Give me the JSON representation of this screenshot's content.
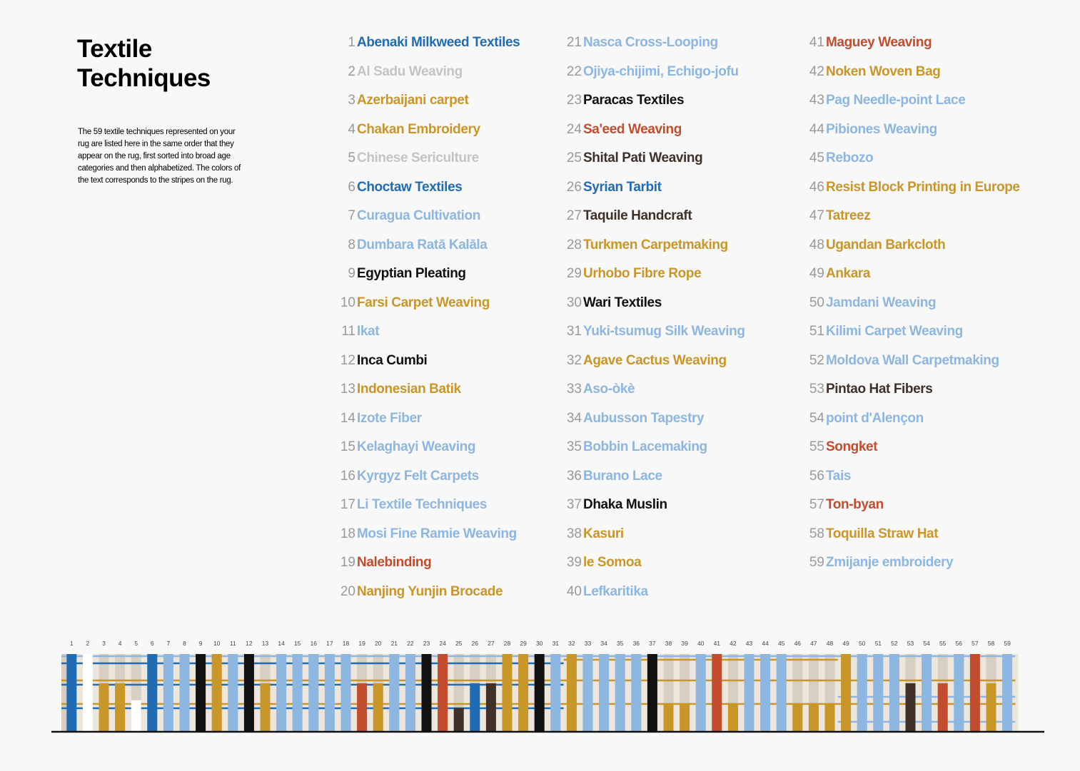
{
  "title_line1": "Textile",
  "title_line2": "Techniques",
  "description": "The 59 textile techniques represented on your rug are listed here in the same order that they appear on the rug, first sorted into broad age categories and then alphabetized. The colors of the text corresponds to the stripes on the rug.",
  "colors": {
    "dark_blue": "#1f6cb4",
    "light_blue": "#8db6e0",
    "gold": "#c9962a",
    "red": "#c24d2e",
    "black": "#111111",
    "brown": "#3f3129",
    "gray": "#c4c4c4",
    "white": "#ffffff",
    "beige": "#d8cfc2",
    "axis": "#111111"
  },
  "techniques": [
    {
      "n": "1",
      "name": "Abenaki Milkweed Textiles",
      "color": "dark_blue"
    },
    {
      "n": "2",
      "name": "Al Sadu Weaving",
      "color": "gray"
    },
    {
      "n": "3",
      "name": "Azerbaijani carpet",
      "color": "gold"
    },
    {
      "n": "4",
      "name": "Chakan Embroidery",
      "color": "gold"
    },
    {
      "n": "5",
      "name": "Chinese Sericulture",
      "color": "gray"
    },
    {
      "n": "6",
      "name": "Choctaw Textiles",
      "color": "dark_blue"
    },
    {
      "n": "7",
      "name": "Curagua Cultivation",
      "color": "light_blue"
    },
    {
      "n": "8",
      "name": "Dumbara Ratā Kalāla",
      "color": "light_blue"
    },
    {
      "n": "9",
      "name": "Egyptian Pleating",
      "color": "black"
    },
    {
      "n": "10",
      "name": "Farsi Carpet Weaving",
      "color": "gold"
    },
    {
      "n": "11",
      "name": "Ikat",
      "color": "light_blue"
    },
    {
      "n": "12",
      "name": "Inca Cumbi",
      "color": "black"
    },
    {
      "n": "13",
      "name": "Indonesian Batik",
      "color": "gold"
    },
    {
      "n": "14",
      "name": "Izote Fiber",
      "color": "light_blue"
    },
    {
      "n": "15",
      "name": "Kelaghayi Weaving",
      "color": "light_blue"
    },
    {
      "n": "16",
      "name": "Kyrgyz Felt Carpets",
      "color": "light_blue"
    },
    {
      "n": "17",
      "name": "Li Textile Techniques",
      "color": "light_blue"
    },
    {
      "n": "18",
      "name": "Mosi Fine Ramie Weaving",
      "color": "light_blue"
    },
    {
      "n": "19",
      "name": "Nalebinding",
      "color": "red"
    },
    {
      "n": "20",
      "name": "Nanjing Yunjin Brocade",
      "color": "gold"
    },
    {
      "n": "21",
      "name": "Nasca Cross-Looping",
      "color": "light_blue"
    },
    {
      "n": "22",
      "name": "Ojiya-chijimi, Echigo-jofu",
      "color": "light_blue"
    },
    {
      "n": "23",
      "name": "Paracas Textiles",
      "color": "black"
    },
    {
      "n": "24",
      "name": "Sa'eed Weaving",
      "color": "red"
    },
    {
      "n": "25",
      "name": "Shital Pati Weaving",
      "color": "brown"
    },
    {
      "n": "26",
      "name": "Syrian Tarbit",
      "color": "dark_blue"
    },
    {
      "n": "27",
      "name": "Taquile Handcraft",
      "color": "brown"
    },
    {
      "n": "28",
      "name": "Turkmen Carpetmaking",
      "color": "gold"
    },
    {
      "n": "29",
      "name": "Urhobo Fibre Rope",
      "color": "gold"
    },
    {
      "n": "30",
      "name": "Wari Textiles",
      "color": "black"
    },
    {
      "n": "31",
      "name": "Yuki-tsumug Silk Weaving",
      "color": "light_blue"
    },
    {
      "n": "32",
      "name": "Agave Cactus Weaving",
      "color": "gold"
    },
    {
      "n": "33",
      "name": "Aso-òkè",
      "color": "light_blue"
    },
    {
      "n": "34",
      "name": "Aubusson Tapestry",
      "color": "light_blue"
    },
    {
      "n": "35",
      "name": "Bobbin Lacemaking",
      "color": "light_blue"
    },
    {
      "n": "36",
      "name": "Burano Lace",
      "color": "light_blue"
    },
    {
      "n": "37",
      "name": "Dhaka Muslin",
      "color": "black"
    },
    {
      "n": "38",
      "name": "Kasuri",
      "color": "gold"
    },
    {
      "n": "39",
      "name": "le Somoa",
      "color": "gold"
    },
    {
      "n": "40",
      "name": "Lefkaritika",
      "color": "light_blue"
    },
    {
      "n": "41",
      "name": "Maguey Weaving",
      "color": "red"
    },
    {
      "n": "42",
      "name": "Noken Woven Bag",
      "color": "gold"
    },
    {
      "n": "43",
      "name": "Pag Needle-point Lace",
      "color": "light_blue"
    },
    {
      "n": "44",
      "name": "Pibiones Weaving",
      "color": "light_blue"
    },
    {
      "n": "45",
      "name": "Rebozo",
      "color": "light_blue"
    },
    {
      "n": "46",
      "name": "Resist Block Printing in Europe",
      "color": "gold"
    },
    {
      "n": "47",
      "name": "Tatreez",
      "color": "gold"
    },
    {
      "n": "48",
      "name": "Ugandan Barkcloth",
      "color": "gold"
    },
    {
      "n": "49",
      "name": "Ankara",
      "color": "gold"
    },
    {
      "n": "50",
      "name": "Jamdani Weaving",
      "color": "light_blue"
    },
    {
      "n": "51",
      "name": "Kilimi Carpet Weaving",
      "color": "light_blue"
    },
    {
      "n": "52",
      "name": "Moldova Wall Carpetmaking",
      "color": "light_blue"
    },
    {
      "n": "53",
      "name": "Pintao Hat Fibers",
      "color": "brown"
    },
    {
      "n": "54",
      "name": "point d'Alençon",
      "color": "light_blue"
    },
    {
      "n": "55",
      "name": "Songket",
      "color": "red"
    },
    {
      "n": "56",
      "name": "Tais",
      "color": "light_blue"
    },
    {
      "n": "57",
      "name": "Ton-byan",
      "color": "red"
    },
    {
      "n": "58",
      "name": "Toquilla Straw Hat",
      "color": "gold"
    },
    {
      "n": "59",
      "name": "Zmijanje embroidery",
      "color": "light_blue"
    }
  ],
  "chart_data": {
    "type": "bar",
    "categories": [
      "1",
      "2",
      "3",
      "4",
      "5",
      "6",
      "7",
      "8",
      "9",
      "10",
      "11",
      "12",
      "13",
      "14",
      "15",
      "16",
      "17",
      "18",
      "19",
      "20",
      "21",
      "22",
      "23",
      "24",
      "25",
      "26",
      "27",
      "28",
      "29",
      "30",
      "31",
      "32",
      "33",
      "34",
      "35",
      "36",
      "37",
      "38",
      "39",
      "40",
      "41",
      "42",
      "43",
      "44",
      "45",
      "46",
      "47",
      "48",
      "49",
      "50",
      "51",
      "52",
      "53",
      "54",
      "55",
      "56",
      "57",
      "58",
      "59"
    ],
    "bar_colors": [
      "dark_blue",
      "white",
      "gold",
      "gold",
      "white",
      "dark_blue",
      "light_blue",
      "light_blue",
      "black",
      "gold",
      "light_blue",
      "black",
      "gold",
      "light_blue",
      "light_blue",
      "light_blue",
      "light_blue",
      "light_blue",
      "red",
      "gold",
      "light_blue",
      "light_blue",
      "black",
      "red",
      "brown",
      "dark_blue",
      "brown",
      "gold",
      "gold",
      "black",
      "light_blue",
      "gold",
      "light_blue",
      "light_blue",
      "light_blue",
      "light_blue",
      "black",
      "gold",
      "gold",
      "light_blue",
      "red",
      "gold",
      "light_blue",
      "light_blue",
      "light_blue",
      "gold",
      "gold",
      "gold",
      "gold",
      "light_blue",
      "light_blue",
      "light_blue",
      "brown",
      "light_blue",
      "red",
      "light_blue",
      "red",
      "gold",
      "light_blue"
    ],
    "bar_heights": [
      1.0,
      1.0,
      0.62,
      0.62,
      0.4,
      1.0,
      1.0,
      1.0,
      1.0,
      1.0,
      1.0,
      1.0,
      0.62,
      1.0,
      1.0,
      1.0,
      1.0,
      1.0,
      0.62,
      0.62,
      1.0,
      1.0,
      1.0,
      1.0,
      0.3,
      0.62,
      0.62,
      1.0,
      1.0,
      1.0,
      1.0,
      1.0,
      1.0,
      1.0,
      1.0,
      1.0,
      1.0,
      0.35,
      0.35,
      1.0,
      1.0,
      0.35,
      1.0,
      1.0,
      1.0,
      0.35,
      0.35,
      0.35,
      1.0,
      1.0,
      1.0,
      1.0,
      0.62,
      1.0,
      0.62,
      1.0,
      1.0,
      0.62,
      1.0
    ],
    "xlim": [
      1,
      59
    ],
    "ylim": [
      0,
      1
    ],
    "axis_line": true
  }
}
